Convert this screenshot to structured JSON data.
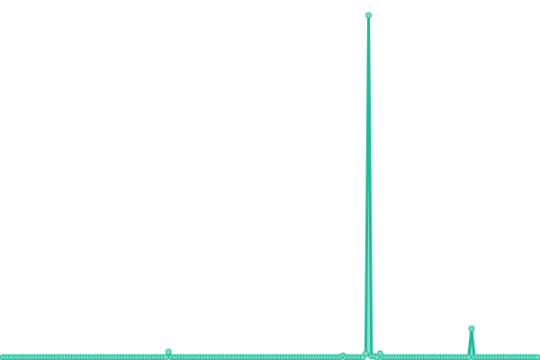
{
  "chart_data": {
    "type": "line",
    "title": "",
    "xlabel": "",
    "ylabel": "",
    "grid": false,
    "legend": "none",
    "ylim": [
      0,
      100
    ],
    "x": "index",
    "values": [
      0,
      0,
      0,
      0,
      0,
      0,
      0,
      0,
      0,
      0,
      0,
      0,
      0,
      0,
      0,
      0,
      0,
      0,
      0,
      0,
      0,
      0,
      0,
      0,
      0,
      0,
      0,
      0,
      0,
      0,
      0,
      0,
      0,
      0,
      0,
      0,
      0,
      0,
      0,
      0,
      0,
      0,
      0,
      0,
      0,
      0,
      0,
      0,
      0,
      0,
      0,
      0,
      0,
      0,
      0,
      0,
      0,
      0,
      1.6,
      0,
      0,
      0,
      0,
      0,
      0,
      0,
      0,
      0,
      0,
      0,
      0,
      0,
      0,
      0,
      0,
      0,
      0,
      0,
      0,
      0,
      0,
      0,
      0,
      0,
      0,
      0,
      0,
      0,
      0,
      0,
      0,
      0,
      0,
      0,
      0,
      0,
      0,
      0,
      0,
      0,
      0,
      0,
      0,
      0,
      0,
      0,
      0,
      0,
      0,
      0,
      0,
      0,
      0,
      0,
      0,
      0,
      0,
      0,
      0,
      0.5,
      0,
      0,
      0,
      0,
      0,
      0,
      0,
      1.1,
      100,
      0.3,
      0.3,
      0,
      1.1,
      0,
      0,
      0,
      0,
      0,
      0,
      0,
      0,
      0,
      0,
      0,
      0,
      0,
      0,
      0,
      0,
      0,
      0,
      0,
      0,
      0,
      0,
      0,
      0,
      0,
      0,
      0,
      0,
      0,
      0,
      0,
      8.4,
      0,
      0,
      0,
      0,
      0,
      0,
      0,
      0,
      0,
      0,
      0,
      0,
      0,
      0,
      0,
      0,
      0,
      0,
      0,
      0,
      0,
      0,
      0
    ],
    "colors": {
      "line": "#1abc9c",
      "area": "#48c9a9",
      "point_fill": "#7fdcc4",
      "point_stroke": "#1abc9c"
    }
  }
}
